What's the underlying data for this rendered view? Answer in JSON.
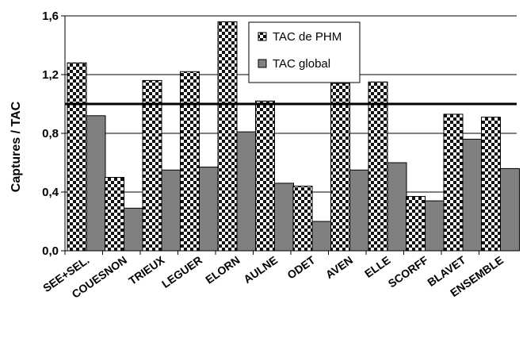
{
  "chart_data": {
    "type": "bar",
    "title": "",
    "xlabel": "",
    "ylabel": "Captures / TAC",
    "ylim": [
      0,
      1.6
    ],
    "yticks": [
      "0,0",
      "0,4",
      "0,8",
      "1,2",
      "1,6"
    ],
    "ytick_values": [
      0,
      0.4,
      0.8,
      1.2,
      1.6
    ],
    "grid": true,
    "legend_position": "top-center",
    "reference_line": 1.0,
    "categories": [
      "SEE+SEL.",
      "COUESNON",
      "TRIEUX",
      "LEGUER",
      "ELORN",
      "AULNE",
      "ODET",
      "AVEN",
      "ELLE",
      "SCORFF",
      "BLAVET",
      "ENSEMBLE"
    ],
    "series": [
      {
        "name": "TAC de PHM",
        "pattern": "checkerboard",
        "values": [
          1.28,
          0.5,
          1.16,
          1.22,
          1.56,
          1.02,
          0.44,
          1.14,
          1.15,
          0.37,
          0.93,
          0.91
        ]
      },
      {
        "name": "TAC global",
        "color": "#808080",
        "values": [
          0.92,
          0.29,
          0.55,
          0.57,
          0.81,
          0.46,
          0.2,
          0.55,
          0.6,
          0.34,
          0.76,
          0.56
        ]
      }
    ]
  }
}
